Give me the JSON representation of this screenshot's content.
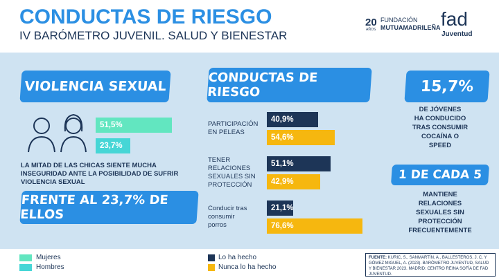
{
  "header": {
    "title": "CONDUCTAS DE RIESGO",
    "subtitle": "IV BARÓMETRO JUVENIL. SALUD Y BIENESTAR",
    "logo1_number": "20",
    "logo1_sub": "AÑOS",
    "logo1_line1": "FUNDACIÓN",
    "logo1_line2": "MUTUAMADRILEÑA",
    "logo2_title": "fad",
    "logo2_sub": "Juventud"
  },
  "violencia": {
    "title": "VIOLENCIA SEXUAL",
    "series": [
      {
        "name": "Mujeres",
        "color": "#62e6c0",
        "value": 51.5,
        "value_label": "51,5%"
      },
      {
        "name": "Hombres",
        "color": "#46d6d6",
        "value": 23.7,
        "value_label": "23,7%"
      }
    ],
    "text": "LA MITAD DE LAS CHICAS SIENTE MUCHA INSEGURIDAD ANTE LA POSIBILIDAD DE SUFRIR VIOLENCIA SEXUAL",
    "banner": "FRENTE AL 23,7% DE ELLOS"
  },
  "conductas": {
    "title": "CONDUCTAS DE RIESGO",
    "categories": [
      [
        "PARTICIPACIÓN",
        "EN PELEAS"
      ],
      [
        "TENER",
        "RELACIONES",
        "SEXUALES SIN",
        "PROTECCIÓN"
      ],
      [
        "Conducir tras",
        "consumir",
        "porros"
      ]
    ],
    "series": [
      {
        "name": "Lo ha hecho",
        "color": "#1d3557",
        "values": [
          40.9,
          51.1,
          21.1
        ],
        "value_labels": [
          "40,9%",
          "51,1%",
          "21,1%"
        ]
      },
      {
        "name": "Nunca lo ha hecho",
        "color": "#f6b70f",
        "values": [
          54.6,
          42.9,
          76.6
        ],
        "value_labels": [
          "54,6%",
          "42,9%",
          "76,6%"
        ]
      }
    ]
  },
  "stats": [
    {
      "value": "15,7%",
      "lines": [
        "DE JÓVENES",
        "HA CONDUCIDO",
        "TRAS CONSUMIR",
        "COCAÍNA O",
        "SPEED"
      ]
    },
    {
      "value": "1 DE CADA 5",
      "lines": [
        "MANTIENE",
        "RELACIONES",
        "SEXUALES SIN",
        "PROTECCIÓN",
        "FRECUENTEMENTE"
      ]
    }
  ],
  "source": {
    "label": "FUENTE:",
    "text": "KURIC, S., SANMARTÍN, A., BALLESTEROS, J. C. Y GÓMEZ MIGUEL, A. (2023). BARÓMETRO JUVENTUD, SALUD Y BIENESTAR 2023. MADRID: CENTRO REINA SOFÍA DE FAD JUVENTUD."
  }
}
